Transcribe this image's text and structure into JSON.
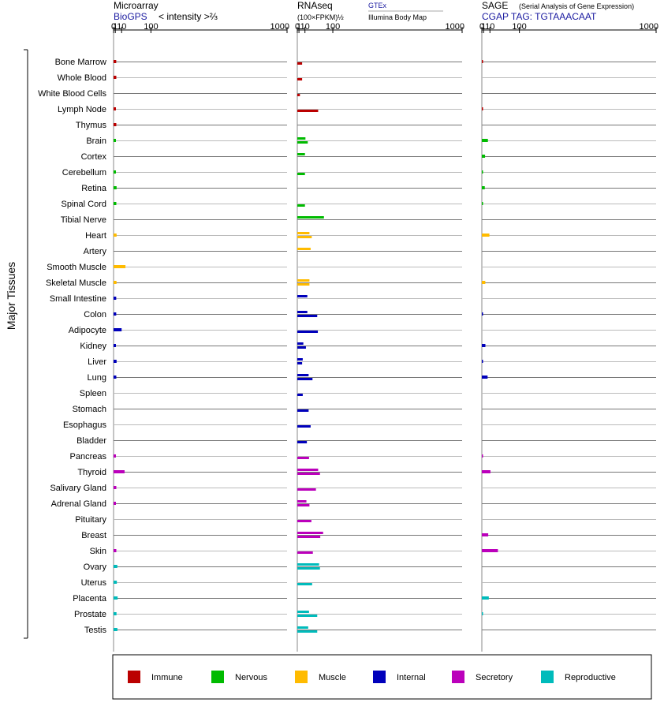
{
  "y_axis_label": "Major Tissues",
  "panels": {
    "microarray": {
      "title": "Microarray",
      "source": "BioGPS",
      "unit": "< intensity >⅔",
      "ticks": [
        "0",
        "1",
        "10",
        "100",
        "1000"
      ]
    },
    "rnaseq": {
      "title": "RNAseq",
      "unit": "(100×FPKM)½",
      "source_a": "GTEx",
      "source_b": "Illumina Body Map",
      "ticks": [
        "0",
        "1",
        "10",
        "100",
        "1000"
      ]
    },
    "sage": {
      "title": "SAGE",
      "subtitle": "(Serial Analysis of Gene Expression)",
      "tag": "CGAP TAG: TGTAAACAAT",
      "ticks": [
        "0",
        "1",
        "10",
        "100",
        "1000"
      ]
    }
  },
  "legend": [
    {
      "label": "Immune",
      "color": "#bb0000"
    },
    {
      "label": "Nervous",
      "color": "#00bb00"
    },
    {
      "label": "Muscle",
      "color": "#ffbb00"
    },
    {
      "label": "Internal",
      "color": "#0000bb"
    },
    {
      "label": "Secretory",
      "color": "#bb00bb"
    },
    {
      "label": "Reproductive",
      "color": "#00bbbb"
    }
  ],
  "chart_data": {
    "type": "bar",
    "orientation": "horizontal",
    "x_axis": "mapped scale, ticks at 0, 1, 10, 100, 1000",
    "categories": [
      "Bone Marrow",
      "Whole Blood",
      "White Blood Cells",
      "Lymph Node",
      "Thymus",
      "Brain",
      "Cortex",
      "Cerebellum",
      "Retina",
      "Spinal Cord",
      "Tibial Nerve",
      "Heart",
      "Artery",
      "Smooth Muscle",
      "Skeletal Muscle",
      "Small Intestine",
      "Colon",
      "Adipocyte",
      "Kidney",
      "Liver",
      "Lung",
      "Spleen",
      "Stomach",
      "Esophagus",
      "Bladder",
      "Pancreas",
      "Thyroid",
      "Salivary Gland",
      "Adrenal Gland",
      "Pituitary",
      "Breast",
      "Skin",
      "Ovary",
      "Uterus",
      "Placenta",
      "Prostate",
      "Testis"
    ],
    "groups": [
      "Immune",
      "Immune",
      "Immune",
      "Immune",
      "Immune",
      "Nervous",
      "Nervous",
      "Nervous",
      "Nervous",
      "Nervous",
      "Nervous",
      "Muscle",
      "Muscle",
      "Muscle",
      "Muscle",
      "Internal",
      "Internal",
      "Internal",
      "Internal",
      "Internal",
      "Internal",
      "Internal",
      "Internal",
      "Internal",
      "Internal",
      "Secretory",
      "Secretory",
      "Secretory",
      "Secretory",
      "Secretory",
      "Secretory",
      "Secretory",
      "Reproductive",
      "Reproductive",
      "Reproductive",
      "Reproductive",
      "Reproductive"
    ],
    "series": [
      {
        "name": "Microarray",
        "values": [
          1.9,
          2.0,
          null,
          1.6,
          2.0,
          1.6,
          null,
          1.6,
          2.3,
          2.0,
          null,
          2.3,
          null,
          18,
          2.2,
          1.9,
          1.9,
          10,
          1.6,
          2.3,
          2.0,
          null,
          null,
          null,
          null,
          1.6,
          16,
          2.0,
          1.6,
          null,
          null,
          2.0,
          3.2,
          2.6,
          3.6,
          2.2,
          3.3
        ]
      },
      {
        "name": "GTEx",
        "values": [
          null,
          null,
          null,
          null,
          null,
          11,
          10,
          null,
          null,
          null,
          65,
          20,
          23,
          null,
          20,
          15,
          15,
          null,
          7,
          6,
          18,
          null,
          null,
          null,
          null,
          null,
          45,
          null,
          13,
          null,
          62,
          null,
          48,
          null,
          null,
          19,
          17
        ]
      },
      {
        "name": "Illumina Body Map",
        "values": [
          5,
          5,
          2,
          45,
          null,
          16,
          null,
          10,
          null,
          10,
          null,
          26,
          null,
          null,
          20,
          null,
          42,
          44,
          12,
          5,
          28,
          6,
          18,
          23,
          14,
          19,
          51,
          38,
          20,
          25,
          52,
          29,
          51,
          27,
          null,
          42,
          42
        ]
      },
      {
        "name": "SAGE",
        "values": [
          0.03,
          null,
          null,
          0.03,
          null,
          6.5,
          2.5,
          0.05,
          2.2,
          0.05,
          null,
          9,
          null,
          null,
          2.8,
          null,
          0.05,
          null,
          2.9,
          0.05,
          6,
          null,
          null,
          null,
          null,
          0.05,
          11,
          null,
          null,
          null,
          7,
          28,
          null,
          null,
          8,
          0.05,
          null
        ]
      }
    ]
  }
}
